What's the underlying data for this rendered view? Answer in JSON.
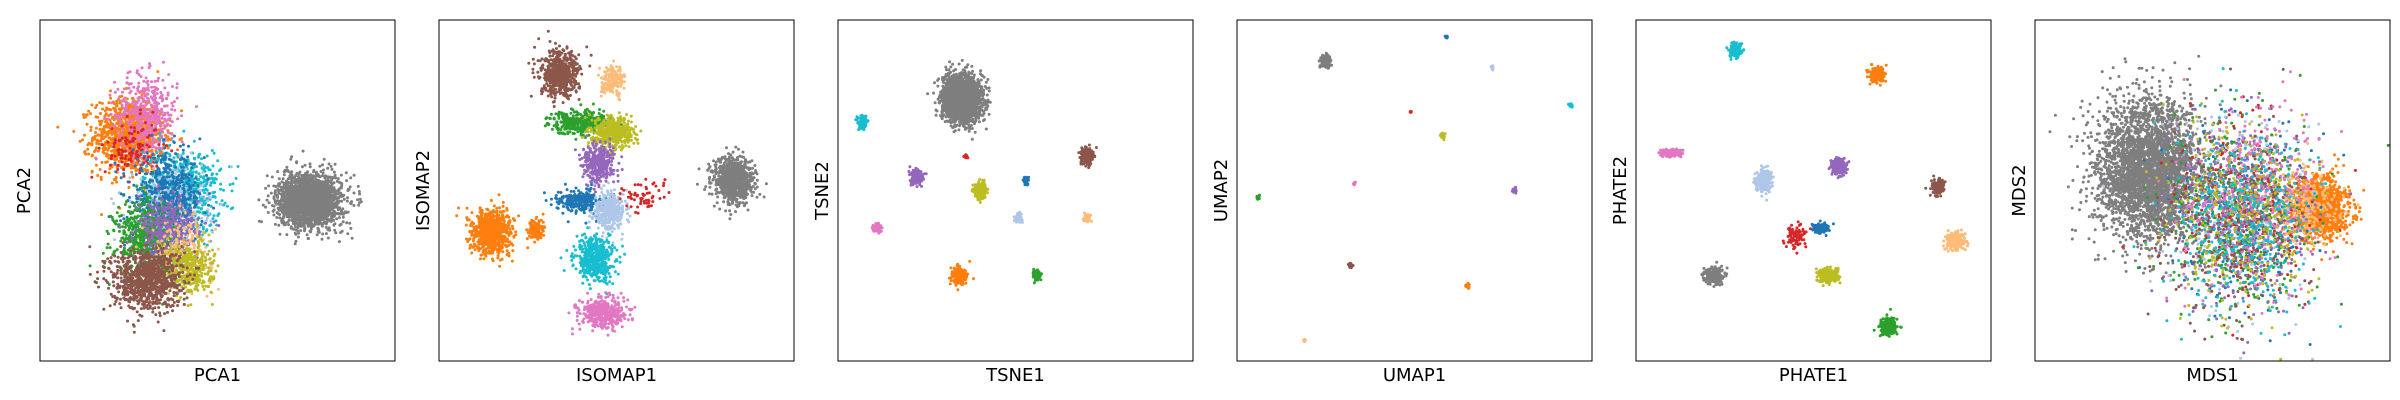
{
  "figure": {
    "background": "#ffffff"
  },
  "palette": [
    "#1f77b4",
    "#aec7e8",
    "#ff7f0e",
    "#ffbb78",
    "#2ca02c",
    "#d62728",
    "#9467bd",
    "#8c564b",
    "#e377c2",
    "#7f7f7f",
    "#bcbd22",
    "#17becf"
  ],
  "chart_data": [
    {
      "type": "scatter",
      "method": "PCA",
      "xlabel": "PCA1",
      "ylabel": "PCA2",
      "xlim": [
        0,
        100
      ],
      "ylim": [
        0,
        100
      ],
      "ticks": "none",
      "legend": "none",
      "clusters": [
        {
          "color": "#ff7f0e",
          "center": [
            25,
            66
          ],
          "spread": [
            9,
            10
          ],
          "count": 1000
        },
        {
          "color": "#e377c2",
          "center": [
            30,
            72
          ],
          "spread": [
            8,
            11
          ],
          "count": 450
        },
        {
          "color": "#d62728",
          "center": [
            26,
            62
          ],
          "spread": [
            7,
            8
          ],
          "count": 120
        },
        {
          "color": "#17becf",
          "center": [
            40,
            50
          ],
          "spread": [
            10,
            11
          ],
          "count": 700
        },
        {
          "color": "#aec7e8",
          "center": [
            36,
            45
          ],
          "spread": [
            9,
            10
          ],
          "count": 500
        },
        {
          "color": "#1f77b4",
          "center": [
            36,
            48
          ],
          "spread": [
            9,
            11
          ],
          "count": 500
        },
        {
          "color": "#2ca02c",
          "center": [
            30,
            36
          ],
          "spread": [
            8,
            10
          ],
          "count": 600
        },
        {
          "color": "#9467bd",
          "center": [
            36,
            38
          ],
          "spread": [
            8,
            9
          ],
          "count": 350
        },
        {
          "color": "#ffbb78",
          "center": [
            40,
            32
          ],
          "spread": [
            8,
            8
          ],
          "count": 250
        },
        {
          "color": "#bcbd22",
          "center": [
            42,
            27
          ],
          "spread": [
            6,
            7
          ],
          "count": 350
        },
        {
          "color": "#8c564b",
          "center": [
            30,
            24
          ],
          "spread": [
            9,
            8
          ],
          "count": 900
        },
        {
          "color": "#7f7f7f",
          "center": [
            76,
            47
          ],
          "spread": [
            8,
            7
          ],
          "count": 2200
        }
      ]
    },
    {
      "type": "scatter",
      "method": "ISOMAP",
      "xlabel": "ISOMAP1",
      "ylabel": "ISOMAP2",
      "xlim": [
        0,
        100
      ],
      "ylim": [
        0,
        100
      ],
      "ticks": "none",
      "legend": "none",
      "clusters": [
        {
          "color": "#8c564b",
          "center": [
            34,
            84
          ],
          "spread": [
            5,
            6
          ],
          "count": 550
        },
        {
          "color": "#ffbb78",
          "center": [
            49,
            82
          ],
          "spread": [
            3,
            4
          ],
          "count": 160
        },
        {
          "color": "#2ca02c",
          "center": [
            40,
            70
          ],
          "spread": [
            8,
            3
          ],
          "count": 350
        },
        {
          "color": "#bcbd22",
          "center": [
            49,
            67
          ],
          "spread": [
            5,
            4
          ],
          "count": 500
        },
        {
          "color": "#9467bd",
          "center": [
            45,
            58
          ],
          "spread": [
            4,
            5
          ],
          "count": 350
        },
        {
          "color": "#1f77b4",
          "center": [
            40,
            47
          ],
          "spread": [
            6,
            3
          ],
          "count": 250
        },
        {
          "color": "#aec7e8",
          "center": [
            48,
            44
          ],
          "spread": [
            4,
            5
          ],
          "count": 350
        },
        {
          "color": "#d62728",
          "center": [
            57,
            48
          ],
          "spread": [
            5,
            4
          ],
          "count": 60
        },
        {
          "color": "#17becf",
          "center": [
            44,
            30
          ],
          "spread": [
            5,
            6
          ],
          "count": 450
        },
        {
          "color": "#e377c2",
          "center": [
            46,
            14
          ],
          "spread": [
            6,
            4
          ],
          "count": 400
        },
        {
          "color": "#ff7f0e",
          "center": [
            15,
            38
          ],
          "spread": [
            5,
            6
          ],
          "count": 750
        },
        {
          "color": "#ff7f0e",
          "center": [
            27,
            38
          ],
          "spread": [
            2,
            3
          ],
          "count": 150
        },
        {
          "color": "#7f7f7f",
          "center": [
            83,
            53
          ],
          "spread": [
            5,
            6
          ],
          "count": 900
        }
      ]
    },
    {
      "type": "scatter",
      "method": "TSNE",
      "xlabel": "TSNE1",
      "ylabel": "TSNE2",
      "xlim": [
        0,
        100
      ],
      "ylim": [
        0,
        100
      ],
      "ticks": "none",
      "legend": "none",
      "clusters": [
        {
          "color": "#7f7f7f",
          "center": [
            35,
            77
          ],
          "spread": [
            5,
            6
          ],
          "count": 2200
        },
        {
          "color": "#17becf",
          "center": [
            7,
            70
          ],
          "spread": [
            1.2,
            1.6
          ],
          "count": 130
        },
        {
          "color": "#8c564b",
          "center": [
            70,
            60
          ],
          "spread": [
            1.5,
            2
          ],
          "count": 220
        },
        {
          "color": "#9467bd",
          "center": [
            22,
            54
          ],
          "spread": [
            1.5,
            2
          ],
          "count": 170
        },
        {
          "color": "#bcbd22",
          "center": [
            40,
            50
          ],
          "spread": [
            1.6,
            2.2
          ],
          "count": 240
        },
        {
          "color": "#1f77b4",
          "center": [
            53,
            53
          ],
          "spread": [
            0.8,
            1
          ],
          "count": 50
        },
        {
          "color": "#d62728",
          "center": [
            36,
            60
          ],
          "spread": [
            0.5,
            0.5
          ],
          "count": 12
        },
        {
          "color": "#aec7e8",
          "center": [
            51,
            42
          ],
          "spread": [
            0.9,
            1.2
          ],
          "count": 60
        },
        {
          "color": "#ffbb78",
          "center": [
            70,
            42
          ],
          "spread": [
            0.9,
            1
          ],
          "count": 60
        },
        {
          "color": "#e377c2",
          "center": [
            11,
            39
          ],
          "spread": [
            1,
            1.2
          ],
          "count": 80
        },
        {
          "color": "#ff7f0e",
          "center": [
            34,
            25
          ],
          "spread": [
            1.8,
            2.4
          ],
          "count": 260
        },
        {
          "color": "#2ca02c",
          "center": [
            56,
            25
          ],
          "spread": [
            1,
            1.3
          ],
          "count": 100
        }
      ]
    },
    {
      "type": "scatter",
      "method": "UMAP",
      "xlabel": "UMAP1",
      "ylabel": "UMAP2",
      "xlim": [
        0,
        100
      ],
      "ylim": [
        0,
        100
      ],
      "ticks": "none",
      "legend": "none",
      "clusters": [
        {
          "color": "#7f7f7f",
          "center": [
            25,
            88
          ],
          "spread": [
            1.1,
            1.5
          ],
          "count": 220
        },
        {
          "color": "#1f77b4",
          "center": [
            59,
            95
          ],
          "spread": [
            0.3,
            0.4
          ],
          "count": 14
        },
        {
          "color": "#aec7e8",
          "center": [
            72,
            86
          ],
          "spread": [
            0.3,
            0.5
          ],
          "count": 14
        },
        {
          "color": "#17becf",
          "center": [
            94,
            75
          ],
          "spread": [
            0.4,
            0.5
          ],
          "count": 22
        },
        {
          "color": "#d62728",
          "center": [
            49,
            73
          ],
          "spread": [
            0.2,
            0.3
          ],
          "count": 5
        },
        {
          "color": "#bcbd22",
          "center": [
            58,
            66
          ],
          "spread": [
            0.5,
            0.7
          ],
          "count": 35
        },
        {
          "color": "#e377c2",
          "center": [
            33,
            52
          ],
          "spread": [
            0.3,
            0.4
          ],
          "count": 14
        },
        {
          "color": "#9467bd",
          "center": [
            78,
            50
          ],
          "spread": [
            0.5,
            0.6
          ],
          "count": 25
        },
        {
          "color": "#2ca02c",
          "center": [
            6,
            48
          ],
          "spread": [
            0.4,
            0.5
          ],
          "count": 18
        },
        {
          "color": "#8c564b",
          "center": [
            32,
            28
          ],
          "spread": [
            0.5,
            0.6
          ],
          "count": 30
        },
        {
          "color": "#ff7f0e",
          "center": [
            65,
            22
          ],
          "spread": [
            0.5,
            0.6
          ],
          "count": 35
        },
        {
          "color": "#ffbb78",
          "center": [
            19,
            6
          ],
          "spread": [
            0.3,
            0.4
          ],
          "count": 10
        }
      ]
    },
    {
      "type": "scatter",
      "method": "PHATE",
      "xlabel": "PHATE1",
      "ylabel": "PHATE2",
      "xlim": [
        0,
        100
      ],
      "ylim": [
        0,
        100
      ],
      "ticks": "none",
      "legend": "none",
      "clusters": [
        {
          "color": "#17becf",
          "center": [
            28,
            91
          ],
          "spread": [
            1.5,
            2
          ],
          "count": 150
        },
        {
          "color": "#ff7f0e",
          "center": [
            68,
            84
          ],
          "spread": [
            1.8,
            2
          ],
          "count": 180
        },
        {
          "color": "#e377c2",
          "center": [
            10,
            61
          ],
          "spread": [
            3,
            1
          ],
          "count": 180
        },
        {
          "color": "#9467bd",
          "center": [
            57,
            57
          ],
          "spread": [
            2,
            2.2
          ],
          "count": 200
        },
        {
          "color": "#aec7e8",
          "center": [
            36,
            53
          ],
          "spread": [
            2,
            3
          ],
          "count": 200
        },
        {
          "color": "#8c564b",
          "center": [
            85,
            51
          ],
          "spread": [
            1.5,
            2
          ],
          "count": 150
        },
        {
          "color": "#1f77b4",
          "center": [
            52,
            39
          ],
          "spread": [
            2,
            1.2
          ],
          "count": 140
        },
        {
          "color": "#d62728",
          "center": [
            45,
            36
          ],
          "spread": [
            2.5,
            3.5
          ],
          "count": 80
        },
        {
          "color": "#bcbd22",
          "center": [
            54,
            25
          ],
          "spread": [
            2.5,
            2
          ],
          "count": 230
        },
        {
          "color": "#ffbb78",
          "center": [
            90,
            35
          ],
          "spread": [
            2.5,
            2.5
          ],
          "count": 200
        },
        {
          "color": "#7f7f7f",
          "center": [
            22,
            25
          ],
          "spread": [
            2.5,
            2.2
          ],
          "count": 200
        },
        {
          "color": "#2ca02c",
          "center": [
            71,
            10
          ],
          "spread": [
            2.2,
            2.5
          ],
          "count": 200
        }
      ]
    },
    {
      "type": "scatter",
      "method": "MDS",
      "xlabel": "MDS1",
      "ylabel": "MDS2",
      "xlim": [
        0,
        100
      ],
      "ylim": [
        0,
        100
      ],
      "ticks": "none",
      "legend": "none",
      "clusters": [
        {
          "color": "#7f7f7f",
          "center": [
            32,
            56
          ],
          "spread": [
            13,
            18
          ],
          "count": 3500
        },
        {
          "color": "#ff7f0e",
          "center": [
            80,
            45
          ],
          "spread": [
            7,
            8
          ],
          "count": 1200
        },
        {
          "color": "#ffbb78",
          "center": [
            76,
            44
          ],
          "spread": [
            8,
            10
          ],
          "count": 250
        },
        {
          "color": "#1f77b4",
          "center": [
            58,
            42
          ],
          "spread": [
            18,
            25
          ],
          "count": 300
        },
        {
          "color": "#aec7e8",
          "center": [
            58,
            42
          ],
          "spread": [
            18,
            25
          ],
          "count": 300
        },
        {
          "color": "#2ca02c",
          "center": [
            58,
            42
          ],
          "spread": [
            18,
            25
          ],
          "count": 350
        },
        {
          "color": "#d62728",
          "center": [
            58,
            42
          ],
          "spread": [
            18,
            25
          ],
          "count": 200
        },
        {
          "color": "#9467bd",
          "center": [
            58,
            42
          ],
          "spread": [
            18,
            25
          ],
          "count": 350
        },
        {
          "color": "#8c564b",
          "center": [
            58,
            42
          ],
          "spread": [
            18,
            25
          ],
          "count": 350
        },
        {
          "color": "#e377c2",
          "center": [
            62,
            50
          ],
          "spread": [
            18,
            24
          ],
          "count": 350
        },
        {
          "color": "#bcbd22",
          "center": [
            58,
            42
          ],
          "spread": [
            18,
            25
          ],
          "count": 350
        },
        {
          "color": "#17becf",
          "center": [
            58,
            42
          ],
          "spread": [
            18,
            25
          ],
          "count": 350
        }
      ]
    }
  ]
}
